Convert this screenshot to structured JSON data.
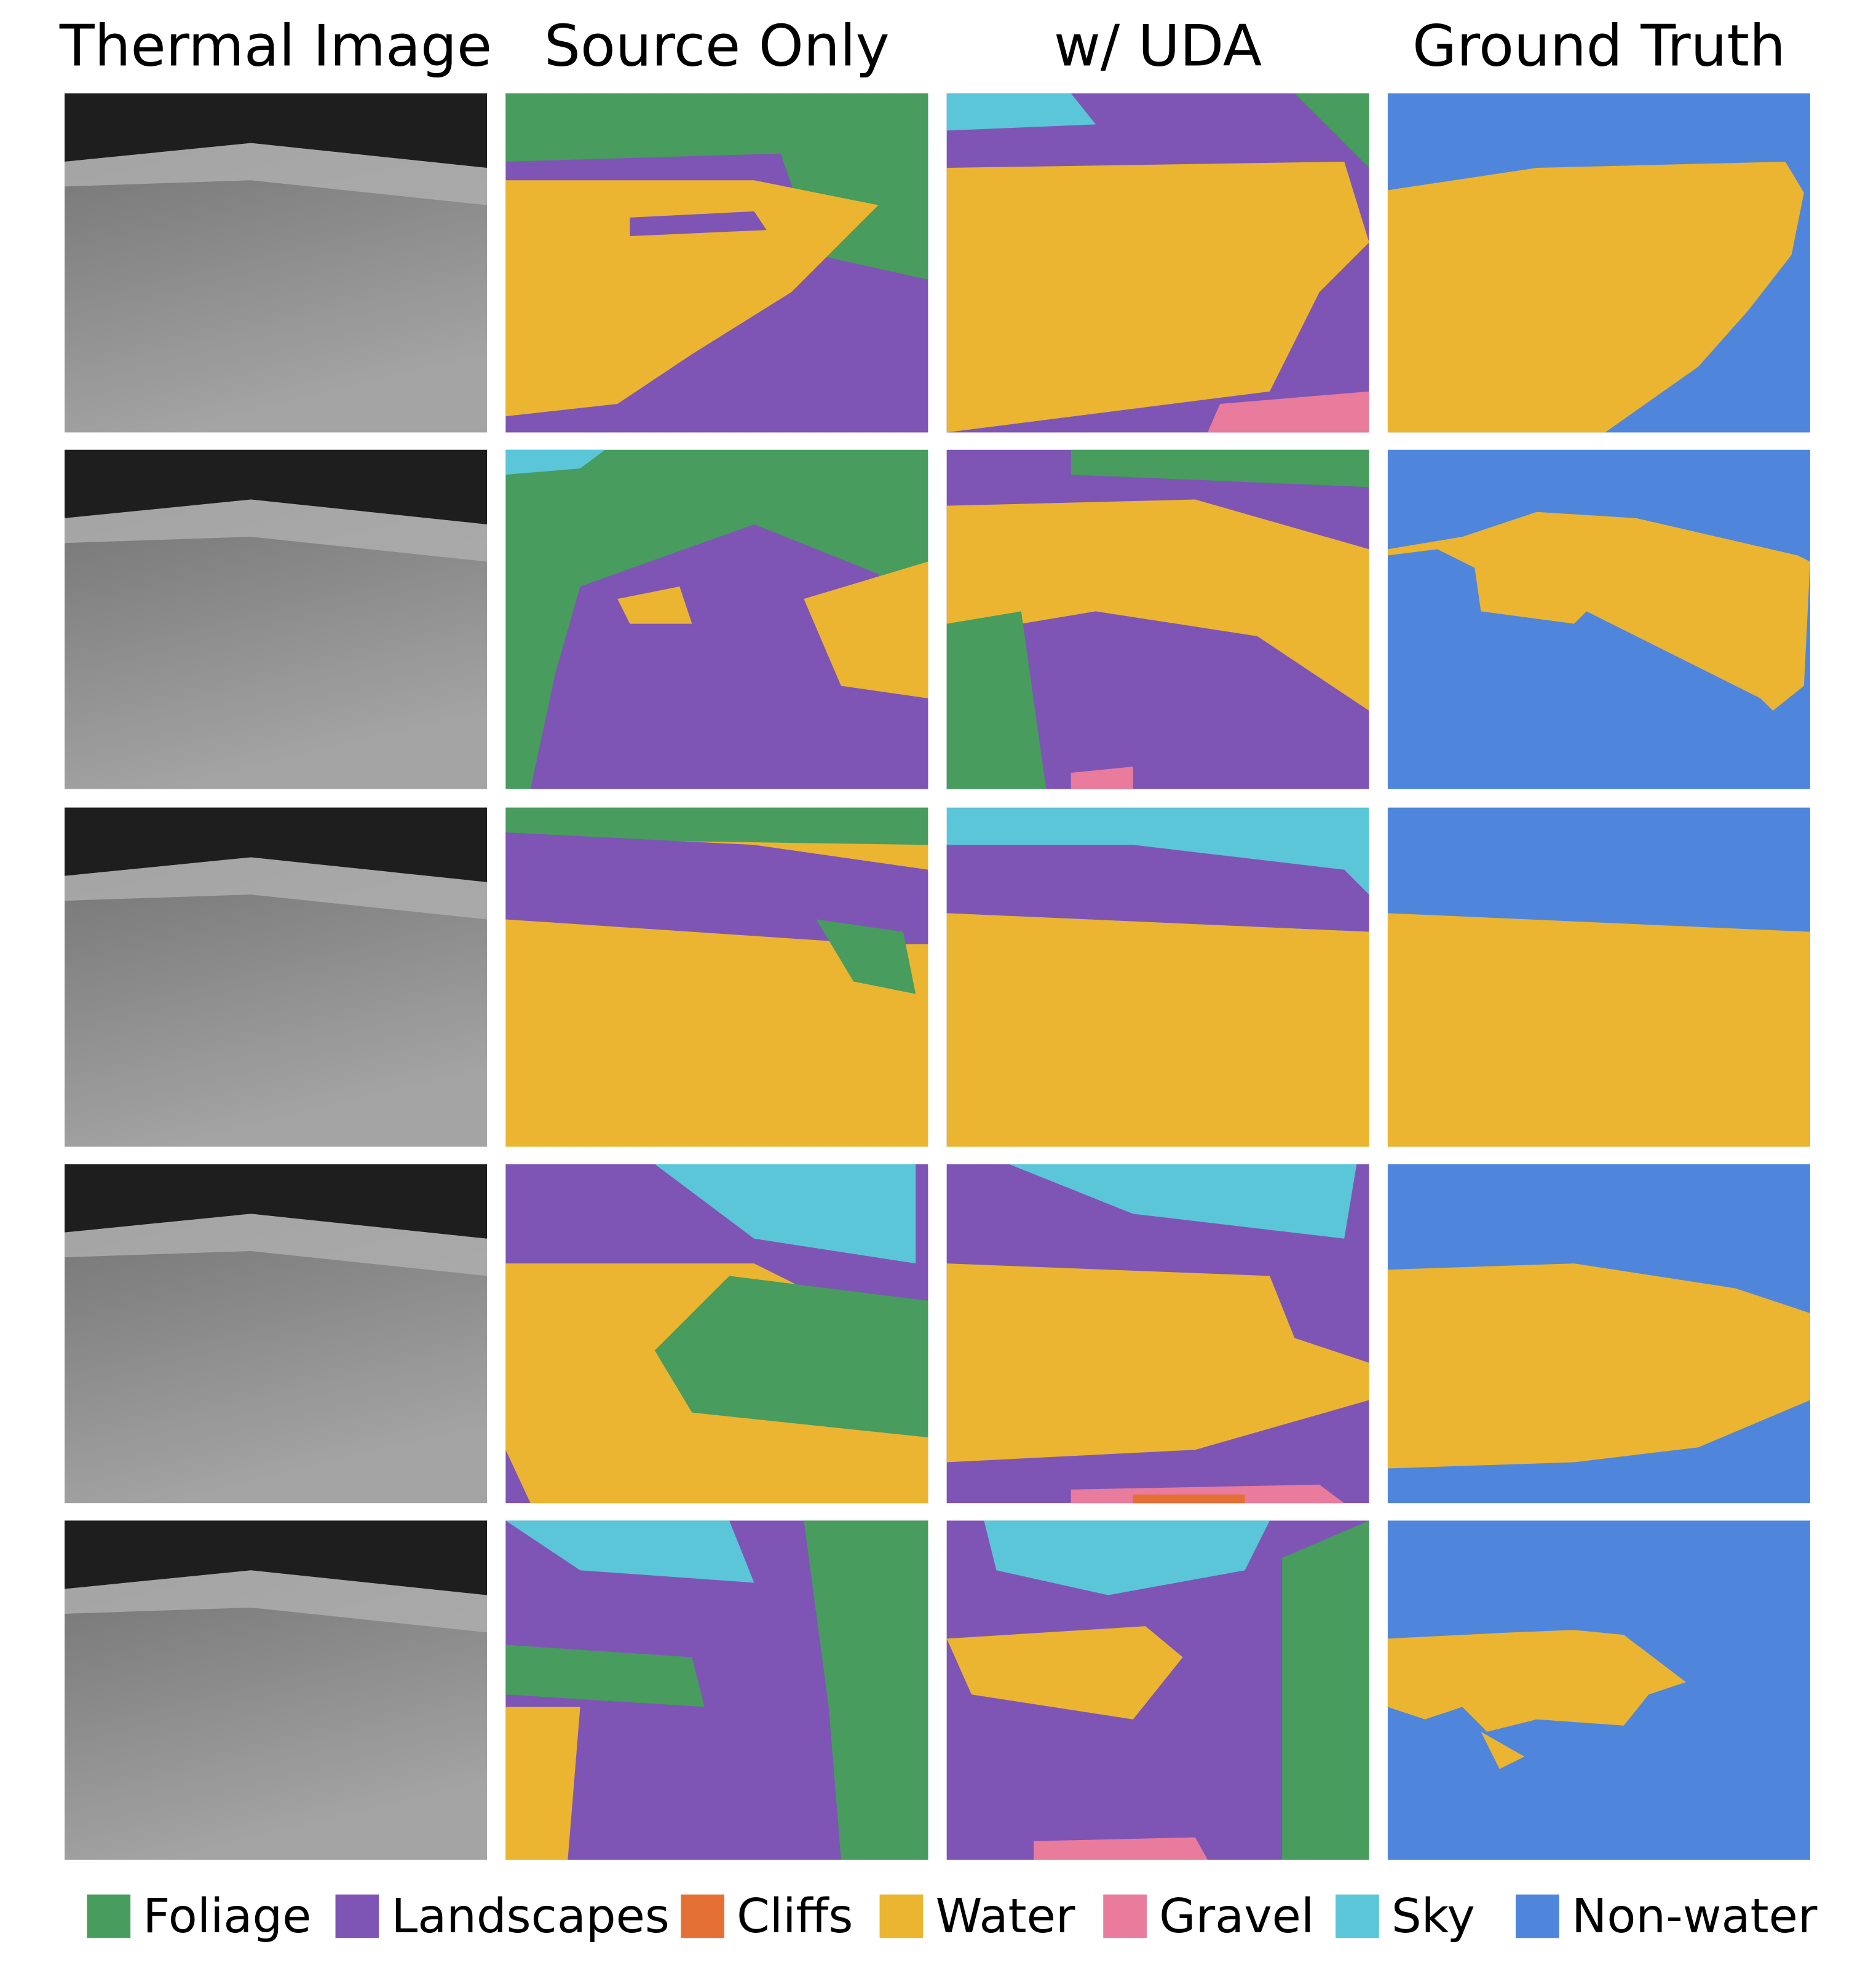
{
  "columns": [
    "Thermal Image",
    "Source Only",
    "w/ UDA",
    "Ground Truth"
  ],
  "legend": [
    {
      "label": "Foliage",
      "color": "#479c5e"
    },
    {
      "label": "Landscapes",
      "color": "#7e55b5"
    },
    {
      "label": "Cliffs",
      "color": "#e57035"
    },
    {
      "label": "Water",
      "color": "#ebb531"
    },
    {
      "label": "Gravel",
      "color": "#e97b9c"
    },
    {
      "label": "Sky",
      "color": "#5bc6d8"
    },
    {
      "label": "Non-water",
      "color": "#4f86dc"
    }
  ]
}
